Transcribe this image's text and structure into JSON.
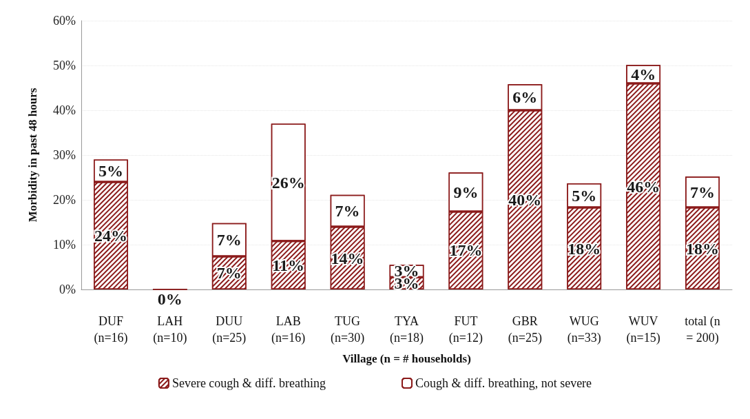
{
  "chart_data": {
    "type": "bar",
    "stacked": true,
    "xlabel": "Village (n = # households)",
    "ylabel": "Morbidity in past 48 hours",
    "categories": [
      "DUF\n(n=16)",
      "LAH\n(n=10)",
      "DUU\n(n=25)",
      "LAB\n(n=16)",
      "TUG\n(n=30)",
      "TYA\n(n=18)",
      "FUT\n(n=12)",
      "GBR\n(n=25)",
      "WUG\n(n=33)",
      "WUV\n(n=15)",
      "total (n\n= 200)"
    ],
    "series": [
      {
        "name": "Severe cough & diff. breathing",
        "color": "#8b1a1a",
        "values": [
          24,
          0,
          7.4,
          10.8,
          14,
          2.75,
          17.4,
          40,
          18.3,
          46,
          18.3
        ],
        "value_labels": [
          "24%",
          "0%",
          "7%",
          "11%",
          "14%",
          "3%",
          "17%",
          "40%",
          "18%",
          "46%",
          "18%"
        ]
      },
      {
        "name": "Cough & diff. breathing, not severe",
        "color": "#8b1a1a",
        "values": [
          5,
          null,
          7.4,
          26.2,
          7.1,
          2.75,
          8.7,
          5.8,
          5.4,
          4.1,
          6.9
        ],
        "value_labels": [
          "5%",
          null,
          "7%",
          "26%",
          "7%",
          "3%",
          "9%",
          "6%",
          "5%",
          "4%",
          "7%"
        ]
      }
    ],
    "ylim": [
      0,
      60
    ],
    "yticks": [
      {
        "value": 0,
        "label": "0%"
      },
      {
        "value": 10,
        "label": "10%"
      },
      {
        "value": 20,
        "label": "20%"
      },
      {
        "value": 30,
        "label": "30%"
      },
      {
        "value": 40,
        "label": "40%"
      },
      {
        "value": 50,
        "label": "50%"
      },
      {
        "value": 60,
        "label": "60%"
      }
    ],
    "grid": "y",
    "legend": "bottom"
  }
}
